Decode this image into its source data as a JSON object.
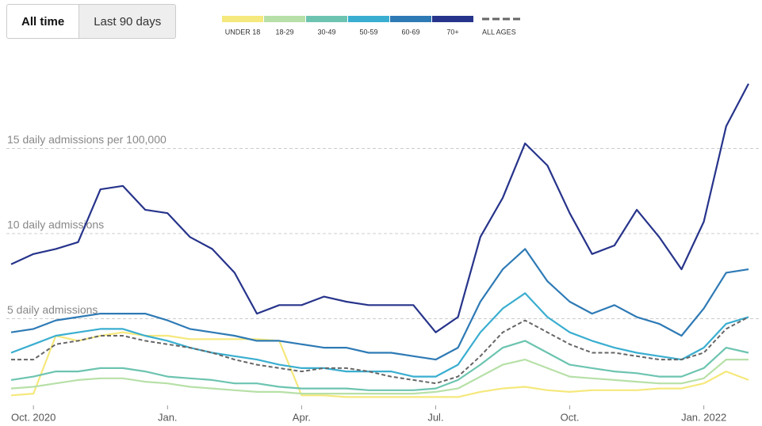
{
  "buttons": [
    "All time",
    "Last 90 days"
  ],
  "chart_data": {
    "type": "line",
    "categories": [
      null,
      "Oct. 2020",
      null,
      null,
      null,
      null,
      null,
      "Jan.",
      null,
      null,
      null,
      null,
      null,
      "Apr.",
      null,
      null,
      null,
      null,
      null,
      "Jul.",
      null,
      null,
      null,
      null,
      null,
      "Oct.",
      null,
      null,
      null,
      null,
      null,
      "Jan. 2022",
      null,
      null
    ],
    "ylim": [
      0,
      20
    ],
    "yticks": [
      {
        "value": 5,
        "label": "5 daily admissions"
      },
      {
        "value": 10,
        "label": "10 daily admissions"
      },
      {
        "value": 15,
        "label": "15 daily admissions per 100,000"
      }
    ],
    "grid": true,
    "legend": "top",
    "series": [
      {
        "name": "UNDER 18",
        "color": "#f5e87c",
        "values": [
          0.5,
          0.6,
          4.0,
          3.7,
          4.0,
          4.2,
          4.0,
          4.0,
          3.8,
          3.8,
          3.8,
          3.8,
          3.7,
          0.5,
          0.5,
          0.4,
          0.4,
          0.4,
          0.4,
          0.4,
          0.4,
          0.7,
          0.9,
          1.0,
          0.8,
          0.7,
          0.8,
          0.8,
          0.8,
          0.9,
          0.9,
          1.2,
          1.9,
          1.4
        ]
      },
      {
        "name": "18-29",
        "color": "#b7e0a8",
        "values": [
          0.9,
          1.0,
          1.2,
          1.4,
          1.5,
          1.5,
          1.3,
          1.2,
          1.0,
          0.9,
          0.8,
          0.7,
          0.7,
          0.6,
          0.6,
          0.6,
          0.6,
          0.6,
          0.6,
          0.7,
          0.9,
          1.6,
          2.3,
          2.6,
          2.1,
          1.6,
          1.5,
          1.4,
          1.3,
          1.2,
          1.2,
          1.5,
          2.6,
          2.6
        ]
      },
      {
        "name": "30-49",
        "color": "#6cc4b0",
        "values": [
          1.4,
          1.6,
          1.9,
          1.9,
          2.1,
          2.1,
          1.9,
          1.6,
          1.5,
          1.4,
          1.2,
          1.2,
          1.0,
          0.9,
          0.9,
          0.9,
          0.8,
          0.8,
          0.8,
          0.9,
          1.4,
          2.3,
          3.3,
          3.7,
          3.0,
          2.3,
          2.1,
          1.9,
          1.8,
          1.6,
          1.6,
          2.1,
          3.3,
          3.0
        ]
      },
      {
        "name": "50-59",
        "color": "#3aaed0",
        "values": [
          3.0,
          3.5,
          4.0,
          4.2,
          4.4,
          4.4,
          4.0,
          3.7,
          3.3,
          3.0,
          2.8,
          2.6,
          2.3,
          2.1,
          2.1,
          1.9,
          1.9,
          1.9,
          1.6,
          1.6,
          2.3,
          4.2,
          5.6,
          6.5,
          5.1,
          4.2,
          3.7,
          3.3,
          3.0,
          2.8,
          2.6,
          3.3,
          4.7,
          5.1
        ]
      },
      {
        "name": "60-69",
        "color": "#2e7ab5",
        "values": [
          4.2,
          4.4,
          4.9,
          5.1,
          5.3,
          5.3,
          5.3,
          4.9,
          4.4,
          4.2,
          4.0,
          3.7,
          3.7,
          3.5,
          3.3,
          3.3,
          3.0,
          3.0,
          2.8,
          2.6,
          3.3,
          6.0,
          7.9,
          9.1,
          7.2,
          6.0,
          5.3,
          5.8,
          5.1,
          4.7,
          4.0,
          5.6,
          7.7,
          7.9
        ]
      },
      {
        "name": "70+",
        "color": "#27348b",
        "values": [
          8.2,
          8.8,
          9.1,
          9.5,
          12.6,
          12.8,
          11.4,
          11.2,
          9.8,
          9.1,
          7.7,
          5.3,
          5.8,
          5.8,
          6.3,
          6.0,
          5.8,
          5.8,
          5.8,
          4.2,
          5.1,
          9.8,
          12.1,
          15.3,
          14.0,
          11.2,
          8.8,
          9.3,
          11.4,
          9.8,
          7.9,
          10.7,
          16.3,
          18.8
        ]
      },
      {
        "name": "ALL AGES",
        "color": "#666666",
        "dashed": true,
        "values": [
          2.6,
          2.6,
          3.5,
          3.7,
          4.0,
          4.0,
          3.7,
          3.5,
          3.3,
          3.0,
          2.6,
          2.3,
          2.1,
          1.9,
          2.1,
          2.1,
          1.9,
          1.6,
          1.4,
          1.2,
          1.6,
          2.8,
          4.2,
          4.9,
          4.2,
          3.5,
          3.0,
          3.0,
          2.8,
          2.6,
          2.6,
          3.0,
          4.4,
          5.1
        ]
      }
    ]
  }
}
